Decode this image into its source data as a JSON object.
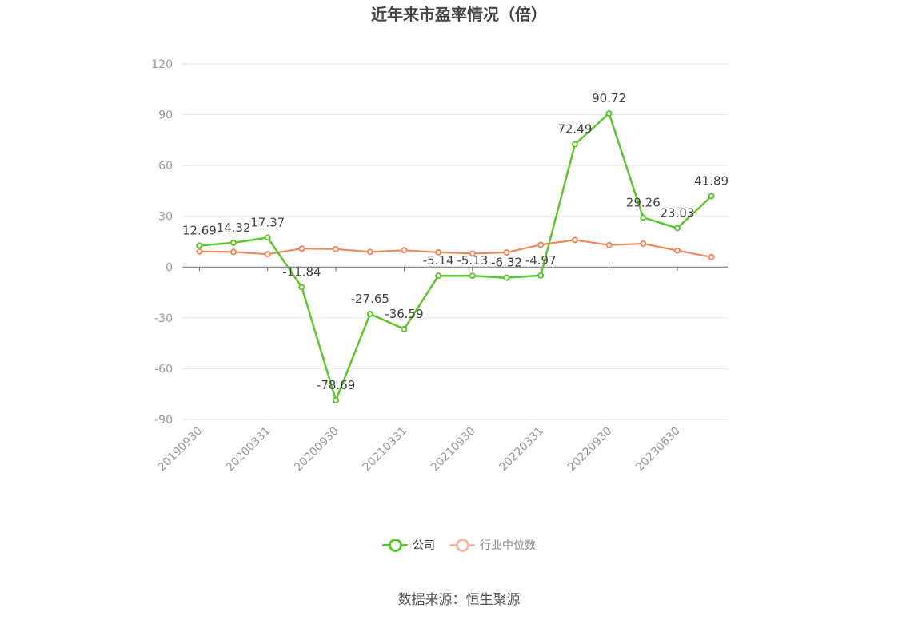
{
  "title": "近年来市盈率情况（倍）",
  "source": "数据来源：恒生聚源",
  "legend": [
    {
      "name": "公司",
      "color": "#5cc62f"
    },
    {
      "name": "行业中位数",
      "color": "#f4b8a4"
    }
  ],
  "chart_data": {
    "type": "line",
    "title": "近年来市盈率情况（倍）",
    "ylim": [
      -90,
      120
    ],
    "yticks": [
      120,
      90,
      60,
      30,
      0,
      -30,
      -60,
      -90
    ],
    "x_tick_labels": [
      "20190930",
      "20200331",
      "20200930",
      "20210331",
      "20210930",
      "20220331",
      "20220930",
      "20230630"
    ],
    "point_count": 16,
    "grid": true,
    "legend_position": "bottom",
    "series": [
      {
        "name": "公司",
        "color": "#5cc62f",
        "values": [
          12.69,
          14.32,
          17.37,
          -11.84,
          -78.69,
          -27.65,
          -36.59,
          -5.14,
          -5.13,
          -6.32,
          -4.97,
          72.49,
          90.72,
          29.26,
          23.03,
          41.89
        ],
        "labels": [
          "12.69",
          "14.32",
          "17.37",
          "-11.84",
          "-78.69",
          "-27.65",
          "-36.59",
          "-5.14",
          "-5.13",
          "-6.32",
          "-4.97",
          "72.49",
          "90.72",
          "29.26",
          "23.03",
          "41.89"
        ]
      },
      {
        "name": "行业中位数",
        "color": "#f08a5d",
        "values": [
          9.2,
          8.9,
          7.6,
          10.9,
          10.6,
          8.9,
          9.9,
          8.7,
          8.0,
          8.6,
          13.2,
          16.0,
          13.0,
          13.8,
          9.7,
          5.9
        ]
      }
    ]
  }
}
